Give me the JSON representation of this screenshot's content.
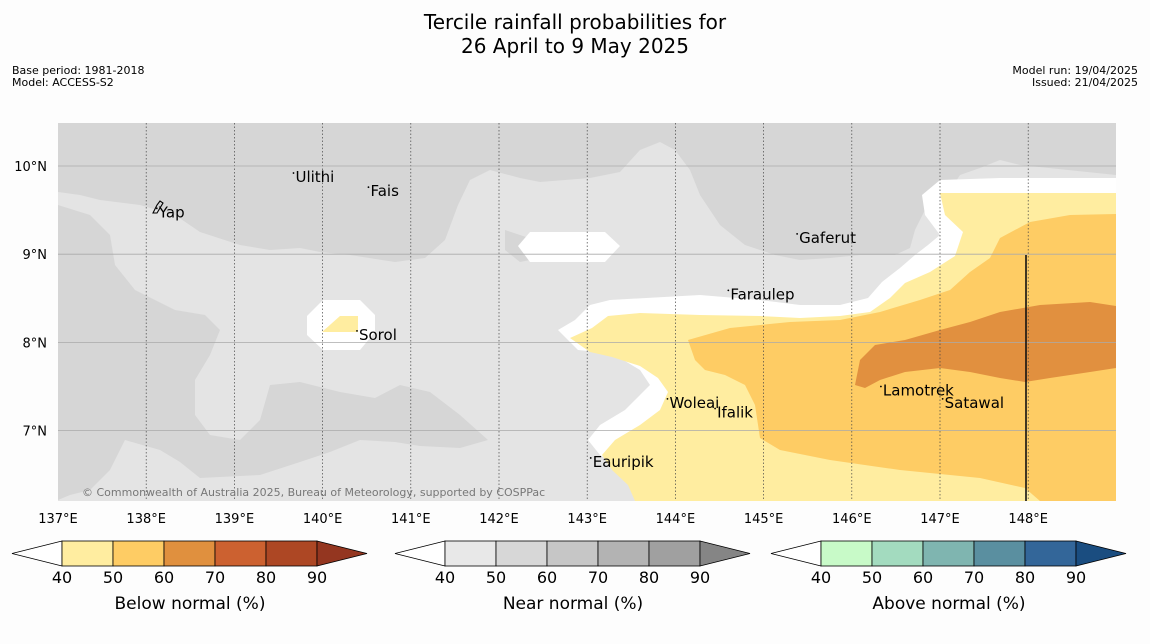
{
  "title": {
    "line1": "Tercile rainfall probabilities for",
    "line2": "26 April to 9 May 2025"
  },
  "meta": {
    "base_period": "Base period: 1981-2018",
    "model": "Model: ACCESS-S2",
    "model_run": "Model run: 19/04/2025",
    "issued": "Issued: 21/04/2025"
  },
  "map": {
    "extent": {
      "lon": [
        137.0,
        149.0
      ],
      "lat": [
        6.2,
        10.5
      ]
    },
    "lon_ticks": [
      "137°E",
      "138°E",
      "139°E",
      "140°E",
      "141°E",
      "142°E",
      "143°E",
      "144°E",
      "145°E",
      "146°E",
      "147°E",
      "148°E"
    ],
    "lat_ticks": [
      "7°N",
      "8°N",
      "9°N",
      "10°N"
    ],
    "copyright": "© Commonwealth of Australia 2025, Bureau of Meteorology, supported by COSPPac",
    "places": [
      {
        "name": "Yap",
        "lon": 138.12,
        "lat": 9.52
      },
      {
        "name": "Ulithi",
        "lon": 139.67,
        "lat": 9.92
      },
      {
        "name": "Fais",
        "lon": 140.52,
        "lat": 9.76
      },
      {
        "name": "Sorol",
        "lon": 140.39,
        "lat": 8.13
      },
      {
        "name": "Gaferut",
        "lon": 145.38,
        "lat": 9.23
      },
      {
        "name": "Faraulep",
        "lon": 144.6,
        "lat": 8.59
      },
      {
        "name": "Woleai",
        "lon": 143.91,
        "lat": 7.36
      },
      {
        "name": "Ifalik",
        "lon": 144.45,
        "lat": 7.25
      },
      {
        "name": "Eauripik",
        "lon": 143.04,
        "lat": 6.69
      },
      {
        "name": "Lamotrek",
        "lon": 146.33,
        "lat": 7.5
      },
      {
        "name": "Satawal",
        "lon": 147.03,
        "lat": 7.36
      }
    ]
  },
  "colorbars": [
    {
      "label": "Below normal (%)",
      "ticks": [
        "40",
        "50",
        "60",
        "70",
        "80",
        "90"
      ],
      "colors": [
        "#ffeda0",
        "#fecc64",
        "#e0903e",
        "#cc6130",
        "#ad4724",
        "#943620"
      ]
    },
    {
      "label": "Near normal (%)",
      "ticks": [
        "40",
        "50",
        "60",
        "70",
        "80",
        "90"
      ],
      "colors": [
        "#e8e8e8",
        "#d7d7d7",
        "#c6c6c6",
        "#b3b3b3",
        "#a0a0a0",
        "#858585"
      ]
    },
    {
      "label": "Above normal (%)",
      "ticks": [
        "40",
        "50",
        "60",
        "70",
        "80",
        "90"
      ],
      "colors": [
        "#c8fac8",
        "#a3dbbf",
        "#7fb5b0",
        "#5a8fa0",
        "#336699",
        "#1a4d80"
      ]
    }
  ]
}
